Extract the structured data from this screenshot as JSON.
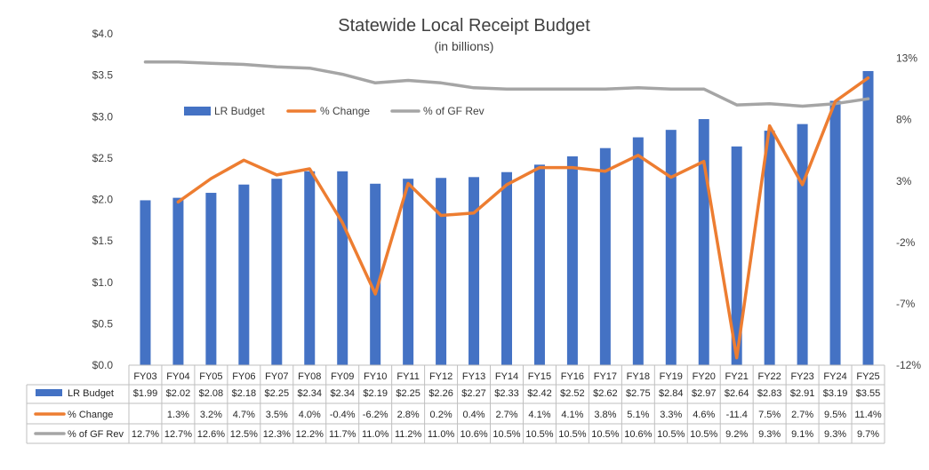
{
  "chart_data": {
    "type": "bar",
    "title": "Statewide Local Receipt Budget",
    "subtitle": "(in billions)",
    "categories": [
      "FY03",
      "FY04",
      "FY05",
      "FY06",
      "FY07",
      "FY08",
      "FY09",
      "FY10",
      "FY11",
      "FY12",
      "FY13",
      "FY14",
      "FY15",
      "FY16",
      "FY17",
      "FY18",
      "FY19",
      "FY20",
      "FY21",
      "FY22",
      "FY23",
      "FY24",
      "FY25"
    ],
    "series": [
      {
        "name": "LR Budget",
        "type": "bar",
        "axis": "left",
        "color": "#4472C4",
        "values": [
          1.99,
          2.02,
          2.08,
          2.18,
          2.25,
          2.34,
          2.34,
          2.19,
          2.25,
          2.26,
          2.27,
          2.33,
          2.42,
          2.52,
          2.62,
          2.75,
          2.84,
          2.97,
          2.64,
          2.83,
          2.91,
          3.19,
          3.55
        ],
        "labels": [
          "$1.99",
          "$2.02",
          "$2.08",
          "$2.18",
          "$2.25",
          "$2.34",
          "$2.34",
          "$2.19",
          "$2.25",
          "$2.26",
          "$2.27",
          "$2.33",
          "$2.42",
          "$2.52",
          "$2.62",
          "$2.75",
          "$2.84",
          "$2.97",
          "$2.64",
          "$2.83",
          "$2.91",
          "$3.19",
          "$3.55"
        ]
      },
      {
        "name": "% Change",
        "type": "line",
        "axis": "right",
        "color": "#ED7D31",
        "values": [
          null,
          1.3,
          3.2,
          4.7,
          3.5,
          4.0,
          -0.4,
          -6.2,
          2.8,
          0.2,
          0.4,
          2.7,
          4.1,
          4.1,
          3.8,
          5.1,
          3.3,
          4.6,
          -11.4,
          7.5,
          2.7,
          9.5,
          11.4
        ],
        "labels": [
          "",
          "1.3%",
          "3.2%",
          "4.7%",
          "3.5%",
          "4.0%",
          "-0.4%",
          "-6.2%",
          "2.8%",
          "0.2%",
          "0.4%",
          "2.7%",
          "4.1%",
          "4.1%",
          "3.8%",
          "5.1%",
          "3.3%",
          "4.6%",
          "-11.4",
          "7.5%",
          "2.7%",
          "9.5%",
          "11.4%"
        ]
      },
      {
        "name": "% of GF Rev",
        "type": "line",
        "axis": "right",
        "color": "#A5A5A5",
        "values": [
          12.7,
          12.7,
          12.6,
          12.5,
          12.3,
          12.2,
          11.7,
          11.0,
          11.2,
          11.0,
          10.6,
          10.5,
          10.5,
          10.5,
          10.5,
          10.6,
          10.5,
          10.5,
          9.2,
          9.3,
          9.1,
          9.3,
          9.7
        ],
        "labels": [
          "12.7%",
          "12.7%",
          "12.6%",
          "12.5%",
          "12.3%",
          "12.2%",
          "11.7%",
          "11.0%",
          "11.2%",
          "11.0%",
          "10.6%",
          "10.5%",
          "10.5%",
          "10.5%",
          "10.5%",
          "10.6%",
          "10.5%",
          "10.5%",
          "9.2%",
          "9.3%",
          "9.1%",
          "9.3%",
          "9.7%"
        ]
      }
    ],
    "y_left": {
      "min": 0,
      "max": 4.0,
      "ticks": [
        "$0.0",
        "$0.5",
        "$1.0",
        "$1.5",
        "$2.0",
        "$2.5",
        "$3.0",
        "$3.5",
        "$4.0"
      ]
    },
    "y_right": {
      "min": -12,
      "max": 15,
      "ticks": [
        {
          "value": -12,
          "label": "-12%"
        },
        {
          "value": -7,
          "label": "-7%"
        },
        {
          "value": -2,
          "label": "-2%"
        },
        {
          "value": 3,
          "label": "3%"
        },
        {
          "value": 8,
          "label": "8%"
        },
        {
          "value": 13,
          "label": "13%"
        }
      ]
    },
    "grid": false,
    "legend": "top-left",
    "data_table": true
  }
}
